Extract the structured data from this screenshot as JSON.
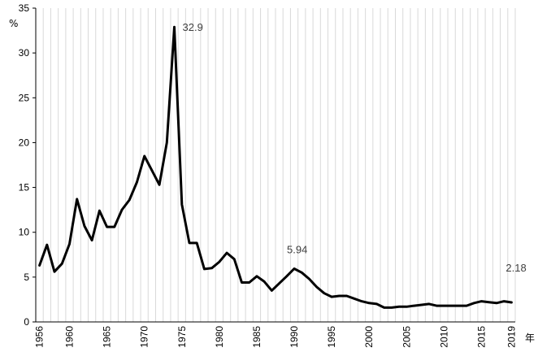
{
  "chart_data": {
    "type": "line",
    "title": "",
    "xlabel": "年",
    "ylabel": "%",
    "xlim": [
      1956,
      2019
    ],
    "ylim": [
      0,
      35
    ],
    "y_ticks": [
      0,
      5,
      10,
      15,
      20,
      25,
      30,
      35
    ],
    "x_ticks": [
      1956,
      1960,
      1965,
      1970,
      1975,
      1980,
      1985,
      1990,
      1995,
      2000,
      2005,
      2010,
      2015,
      2019
    ],
    "grid": {
      "vertical": true,
      "horizontal": false
    },
    "line_color": "#000000",
    "grid_color": "#d9d9d9",
    "series": [
      {
        "x": [
          1956,
          1957,
          1958,
          1959,
          1960,
          1961,
          1962,
          1963,
          1964,
          1965,
          1966,
          1967,
          1968,
          1969,
          1970,
          1971,
          1972,
          1973,
          1974,
          1975,
          1976,
          1977,
          1978,
          1979,
          1980,
          1981,
          1982,
          1983,
          1984,
          1985,
          1986,
          1987,
          1988,
          1989,
          1990,
          1991,
          1992,
          1993,
          1994,
          1995,
          1996,
          1997,
          1998,
          1999,
          2000,
          2001,
          2002,
          2003,
          2004,
          2005,
          2006,
          2007,
          2008,
          2009,
          2010,
          2011,
          2012,
          2013,
          2014,
          2015,
          2016,
          2017,
          2018,
          2019
        ],
        "values": [
          6.3,
          8.6,
          5.6,
          6.5,
          8.7,
          13.7,
          10.7,
          9.1,
          12.4,
          10.6,
          10.6,
          12.5,
          13.6,
          15.6,
          18.5,
          16.9,
          15.3,
          20.0,
          32.9,
          13.1,
          8.8,
          8.8,
          5.9,
          6.0,
          6.7,
          7.7,
          7.0,
          4.4,
          4.4,
          5.1,
          4.5,
          3.5,
          4.3,
          5.1,
          5.94,
          5.5,
          4.8,
          3.9,
          3.2,
          2.8,
          2.9,
          2.9,
          2.6,
          2.3,
          2.1,
          2.0,
          1.6,
          1.6,
          1.7,
          1.7,
          1.8,
          1.9,
          2.0,
          1.8,
          1.8,
          1.8,
          1.8,
          1.8,
          2.1,
          2.3,
          2.2,
          2.1,
          2.3,
          2.18
        ]
      }
    ],
    "annotations": [
      {
        "x": 1974,
        "y": 32.9,
        "text": "32.9"
      },
      {
        "x": 1990,
        "y": 5.94,
        "text": "5.94"
      },
      {
        "x": 2019,
        "y": 2.18,
        "text": "2.18"
      }
    ]
  }
}
